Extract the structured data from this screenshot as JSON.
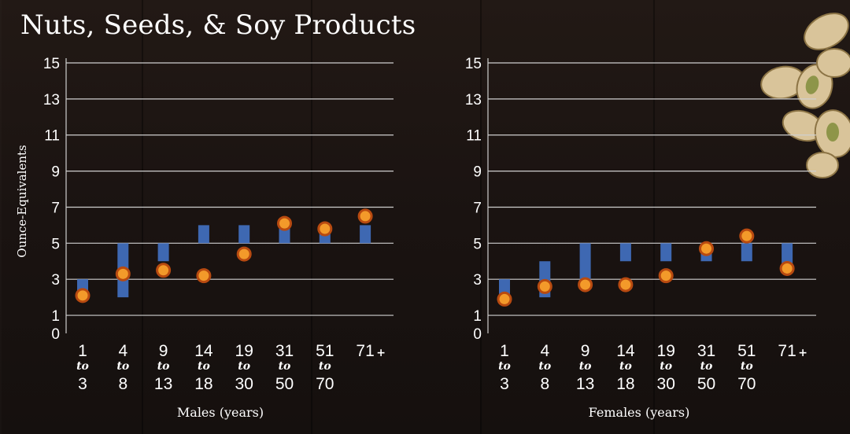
{
  "title": "Nuts, Seeds, & Soy Products",
  "colors": {
    "bar": "#3e68b2",
    "marker_fill": "#f39a2a",
    "marker_ring": "#b84a10",
    "grid": "#cfcfcf",
    "text": "#ffffff"
  },
  "icons": {
    "decoration": "pistachio-nuts-icon"
  },
  "chart_data": [
    {
      "type": "bar",
      "panel": "males",
      "ylabel": "Ounce-Equivalents",
      "xlabel": "Males (years)",
      "yticks": [
        0,
        1,
        3,
        5,
        7,
        9,
        11,
        13,
        15
      ],
      "ylim": [
        0,
        15
      ],
      "grid": true,
      "categories": [
        {
          "from": "1",
          "to": "to",
          "end": "3"
        },
        {
          "from": "4",
          "to": "to",
          "end": "8"
        },
        {
          "from": "9",
          "to": "to",
          "end": "13"
        },
        {
          "from": "14",
          "to": "to",
          "end": "18"
        },
        {
          "from": "19",
          "to": "to",
          "end": "30"
        },
        {
          "from": "31",
          "to": "to",
          "end": "50"
        },
        {
          "from": "51",
          "to": "to",
          "end": "70"
        },
        {
          "from": "71",
          "to": "+",
          "end": ""
        }
      ],
      "series": [
        {
          "kind": "range-bar",
          "low": [
            2,
            2,
            4,
            5,
            5,
            5,
            5,
            5
          ],
          "high": [
            3,
            5,
            5,
            6,
            6,
            6,
            6,
            6
          ]
        },
        {
          "kind": "point",
          "values": [
            2.1,
            3.3,
            3.5,
            3.2,
            4.4,
            6.1,
            5.8,
            6.5
          ]
        }
      ]
    },
    {
      "type": "bar",
      "panel": "females",
      "ylabel": "",
      "xlabel": "Females (years)",
      "yticks": [
        0,
        1,
        3,
        5,
        7,
        9,
        11,
        13,
        15
      ],
      "ylim": [
        0,
        15
      ],
      "grid": true,
      "categories": [
        {
          "from": "1",
          "to": "to",
          "end": "3"
        },
        {
          "from": "4",
          "to": "to",
          "end": "8"
        },
        {
          "from": "9",
          "to": "to",
          "end": "13"
        },
        {
          "from": "14",
          "to": "to",
          "end": "18"
        },
        {
          "from": "19",
          "to": "to",
          "end": "30"
        },
        {
          "from": "31",
          "to": "to",
          "end": "50"
        },
        {
          "from": "51",
          "to": "to",
          "end": "70"
        },
        {
          "from": "71",
          "to": "+",
          "end": ""
        }
      ],
      "series": [
        {
          "kind": "range-bar",
          "low": [
            2,
            2,
            3,
            4,
            4,
            4,
            4,
            3.5
          ],
          "high": [
            3,
            4,
            5,
            5,
            5,
            5,
            5,
            5
          ]
        },
        {
          "kind": "point",
          "values": [
            1.9,
            2.6,
            2.7,
            2.7,
            3.2,
            4.7,
            5.4,
            3.6
          ]
        }
      ]
    }
  ]
}
